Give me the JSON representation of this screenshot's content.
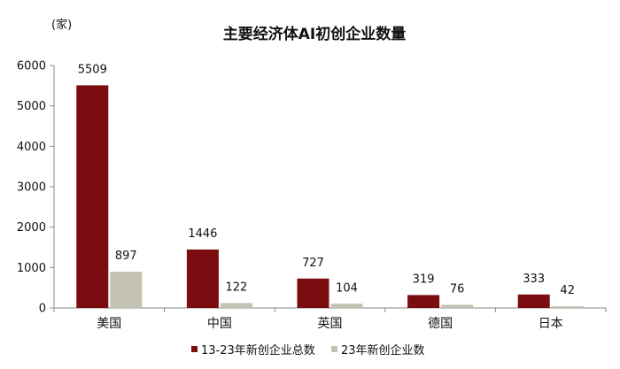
{
  "chart_data": {
    "type": "bar",
    "title": "主要经济体AI初创企业数量",
    "ylabel": "(家)",
    "categories": [
      "美国",
      "中国",
      "英国",
      "德国",
      "日本"
    ],
    "series": [
      {
        "name": "13-23年新创企业总数",
        "values": [
          5509,
          1446,
          727,
          319,
          333
        ],
        "color": "#7b0c0f"
      },
      {
        "name": "23年新创企业数",
        "values": [
          897,
          122,
          104,
          76,
          42
        ],
        "color": "#c3c2b2"
      }
    ],
    "ylim": [
      0,
      6000
    ],
    "yticks": [
      0,
      1000,
      2000,
      3000,
      4000,
      5000,
      6000
    ],
    "grid": false,
    "legend": "bottom"
  }
}
